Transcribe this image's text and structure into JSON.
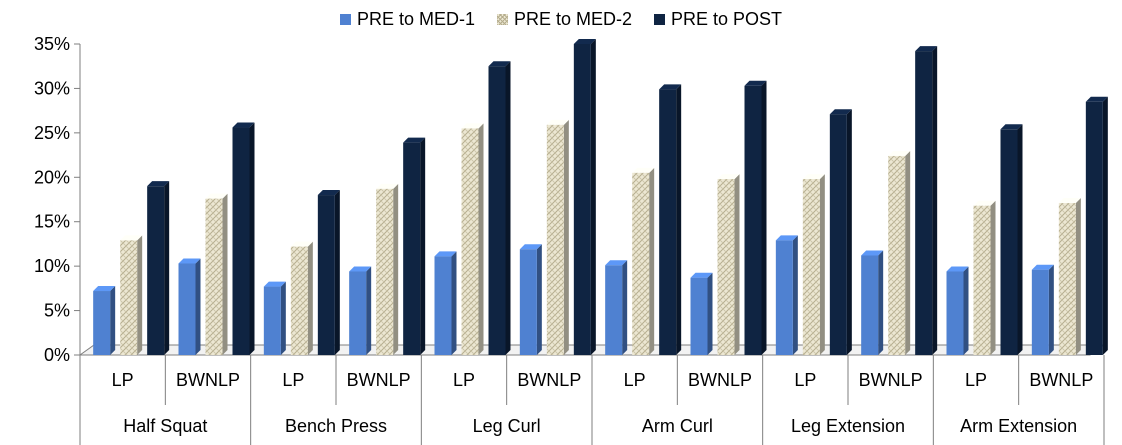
{
  "chart_data": {
    "type": "bar",
    "title": "",
    "xlabel": "",
    "ylabel": "",
    "ylim": [
      0,
      35
    ],
    "yticks": [
      "0%",
      "5%",
      "10%",
      "15%",
      "20%",
      "25%",
      "30%",
      "35%"
    ],
    "groups": [
      {
        "label": "Half Squat",
        "categories": [
          "LP",
          "BWNLP"
        ]
      },
      {
        "label": "Bench Press",
        "categories": [
          "LP",
          "BWNLP"
        ]
      },
      {
        "label": "Leg Curl",
        "categories": [
          "LP",
          "BWNLP"
        ]
      },
      {
        "label": "Arm Curl",
        "categories": [
          "LP",
          "BWNLP"
        ]
      },
      {
        "label": "Leg Extension",
        "categories": [
          "LP",
          "BWNLP"
        ]
      },
      {
        "label": "Arm Extension",
        "categories": [
          "LP",
          "BWNLP"
        ]
      }
    ],
    "categories": [
      "Half Squat LP",
      "Half Squat BWNLP",
      "Bench Press LP",
      "Bench Press BWNLP",
      "Leg Curl LP",
      "Leg Curl BWNLP",
      "Arm Curl LP",
      "Arm Curl BWNLP",
      "Leg Extension LP",
      "Leg Extension BWNLP",
      "Arm Extension LP",
      "Arm Extension BWNLP"
    ],
    "series": [
      {
        "name": "PRE to MED-1",
        "color": "#4f81d1",
        "values": [
          7.2,
          10.3,
          7.7,
          9.4,
          11.1,
          11.9,
          10.1,
          8.7,
          12.9,
          11.2,
          9.4,
          9.6
        ]
      },
      {
        "name": "PRE to MED-2",
        "color": "#ece7d2",
        "values": [
          12.9,
          17.6,
          12.2,
          18.7,
          25.5,
          25.9,
          20.5,
          19.8,
          19.8,
          22.4,
          16.8,
          17.1
        ]
      },
      {
        "name": "PRE to POST",
        "color": "#0f2442",
        "values": [
          19.0,
          25.6,
          18.0,
          23.9,
          32.5,
          35.0,
          29.9,
          30.3,
          27.1,
          34.2,
          25.4,
          28.5
        ]
      }
    ],
    "legend_position": "top",
    "grid": false
  }
}
